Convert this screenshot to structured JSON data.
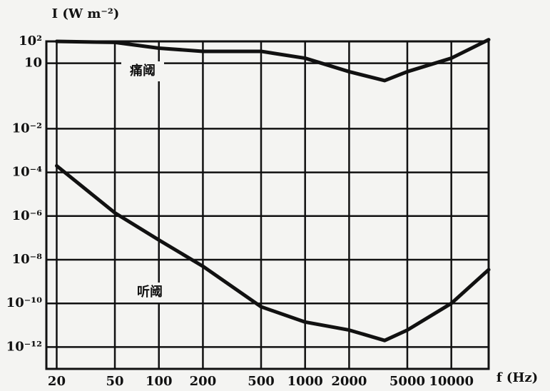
{
  "chart_data": {
    "type": "line",
    "y_label": "I (W m⁻²)",
    "x_label": "f (Hz)",
    "log_x": true,
    "log_y": true,
    "grid": true,
    "xlim": [
      17,
      18000
    ],
    "ylim": [
      1e-13,
      100
    ],
    "xticks": [
      20,
      50,
      100,
      200,
      500,
      1000,
      2000,
      5000,
      10000
    ],
    "yticks": [
      {
        "value": 100,
        "label": "10²"
      },
      10,
      {
        "value": 0.01,
        "label": "10⁻²"
      },
      {
        "value": 0.0001,
        "label": "10⁻⁴"
      },
      {
        "value": 1e-06,
        "label": "10⁻⁶"
      },
      {
        "value": 1e-08,
        "label": "10⁻⁸"
      },
      {
        "value": 1e-10,
        "label": "10⁻¹⁰"
      },
      {
        "value": 1e-12,
        "label": "10⁻¹²"
      }
    ],
    "series": [
      {
        "name": "痛阈",
        "color": "#111111",
        "x": [
          20,
          50,
          100,
          200,
          500,
          1000,
          2000,
          3500,
          5000,
          10000,
          18000
        ],
        "values": [
          100,
          90,
          49,
          35,
          35,
          17,
          4.1,
          1.6,
          4.1,
          17,
          120
        ]
      },
      {
        "name": "听阈",
        "color": "#111111",
        "x": [
          20,
          50,
          100,
          200,
          500,
          1000,
          2000,
          3500,
          5000,
          10000,
          18000
        ],
        "values": [
          0.0002,
          1.4e-06,
          8e-08,
          5e-09,
          7e-11,
          1.4e-11,
          6e-12,
          2e-12,
          6e-12,
          1e-10,
          3.5e-09
        ]
      }
    ]
  }
}
